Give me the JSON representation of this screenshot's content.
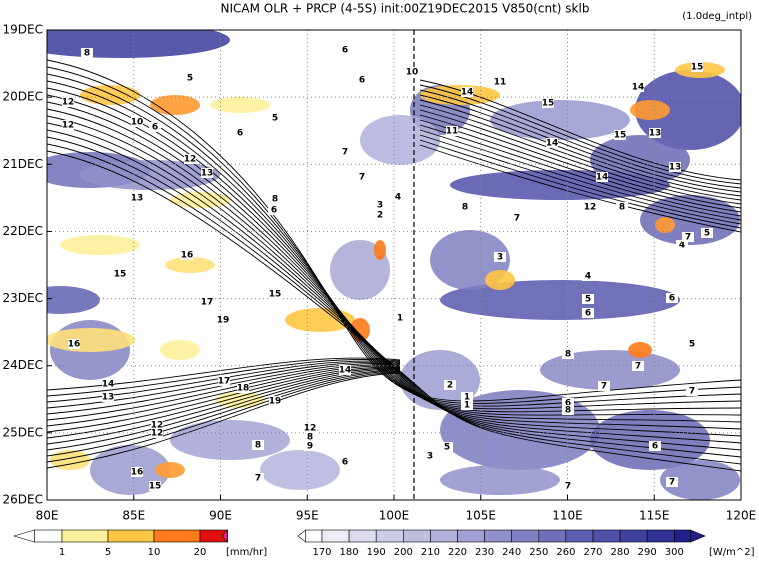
{
  "chart_data": {
    "type": "hovmoller",
    "title": "NICAM  OLR + PRCP (4-5S) init:00Z19DEC2015 V850(cnt) sklb",
    "subtitle": "(1.0deg_intpl)",
    "xlim": [
      80,
      120
    ],
    "xticks": [
      {
        "value": 80,
        "label": "80E"
      },
      {
        "value": 85,
        "label": "85E"
      },
      {
        "value": 90,
        "label": "90E"
      },
      {
        "value": 95,
        "label": "95E"
      },
      {
        "value": 100,
        "label": "100E"
      },
      {
        "value": 105,
        "label": "105E"
      },
      {
        "value": 110,
        "label": "110E"
      },
      {
        "value": 115,
        "label": "115E"
      },
      {
        "value": 120,
        "label": "120E"
      }
    ],
    "ylim": [
      26,
      19
    ],
    "yticks": [
      {
        "value": 19,
        "label": "19DEC"
      },
      {
        "value": 20,
        "label": "20DEC"
      },
      {
        "value": 21,
        "label": "21DEC"
      },
      {
        "value": 22,
        "label": "22DEC"
      },
      {
        "value": 23,
        "label": "23DEC"
      },
      {
        "value": 24,
        "label": "24DEC"
      },
      {
        "value": 25,
        "label": "25DEC"
      },
      {
        "value": 26,
        "label": "26DEC"
      }
    ],
    "grid": true,
    "precip_colorbar": {
      "ticks": [
        1,
        5,
        10,
        20
      ],
      "unit": "[mm/hr]",
      "colors": [
        "#ffffff",
        "#fff09a",
        "#ffc642",
        "#ff7a1a",
        "#e01010",
        "#e0208a"
      ]
    },
    "olr_colorbar": {
      "ticks": [
        170,
        180,
        190,
        200,
        210,
        220,
        230,
        240,
        250,
        260,
        270,
        280,
        290,
        300
      ],
      "unit": "[W/m^2]",
      "colors": [
        "#ffffff",
        "#ececf6",
        "#dcdcee",
        "#cdcde7",
        "#bebee0",
        "#afafd9",
        "#a0a0d2",
        "#9090ca",
        "#8080c2",
        "#7070ba",
        "#6060b2",
        "#5050aa",
        "#4040a0",
        "#303096",
        "#20208a"
      ]
    },
    "contour_labels": [
      "8",
      "5",
      "12",
      "10",
      "12",
      "6",
      "6",
      "5",
      "6",
      "6",
      "10",
      "11",
      "14",
      "15",
      "14",
      "15",
      "13",
      "15",
      "11",
      "14",
      "7",
      "12",
      "13",
      "7",
      "14",
      "13",
      "13",
      "8",
      "6",
      "4",
      "3",
      "2",
      "8",
      "12",
      "8",
      "7",
      "15",
      "16",
      "4",
      "7",
      "5",
      "3",
      "4",
      "5",
      "6",
      "17",
      "15",
      "6",
      "19",
      "1",
      "16",
      "14",
      "8",
      "7",
      "5",
      "17",
      "18",
      "14",
      "13",
      "19",
      "2",
      "1",
      "1",
      "7",
      "7",
      "6",
      "8",
      "12",
      "12",
      "12",
      "8",
      "9",
      "8",
      "5",
      "3",
      "6",
      "6",
      "16",
      "15",
      "7",
      "7",
      "7"
    ]
  }
}
